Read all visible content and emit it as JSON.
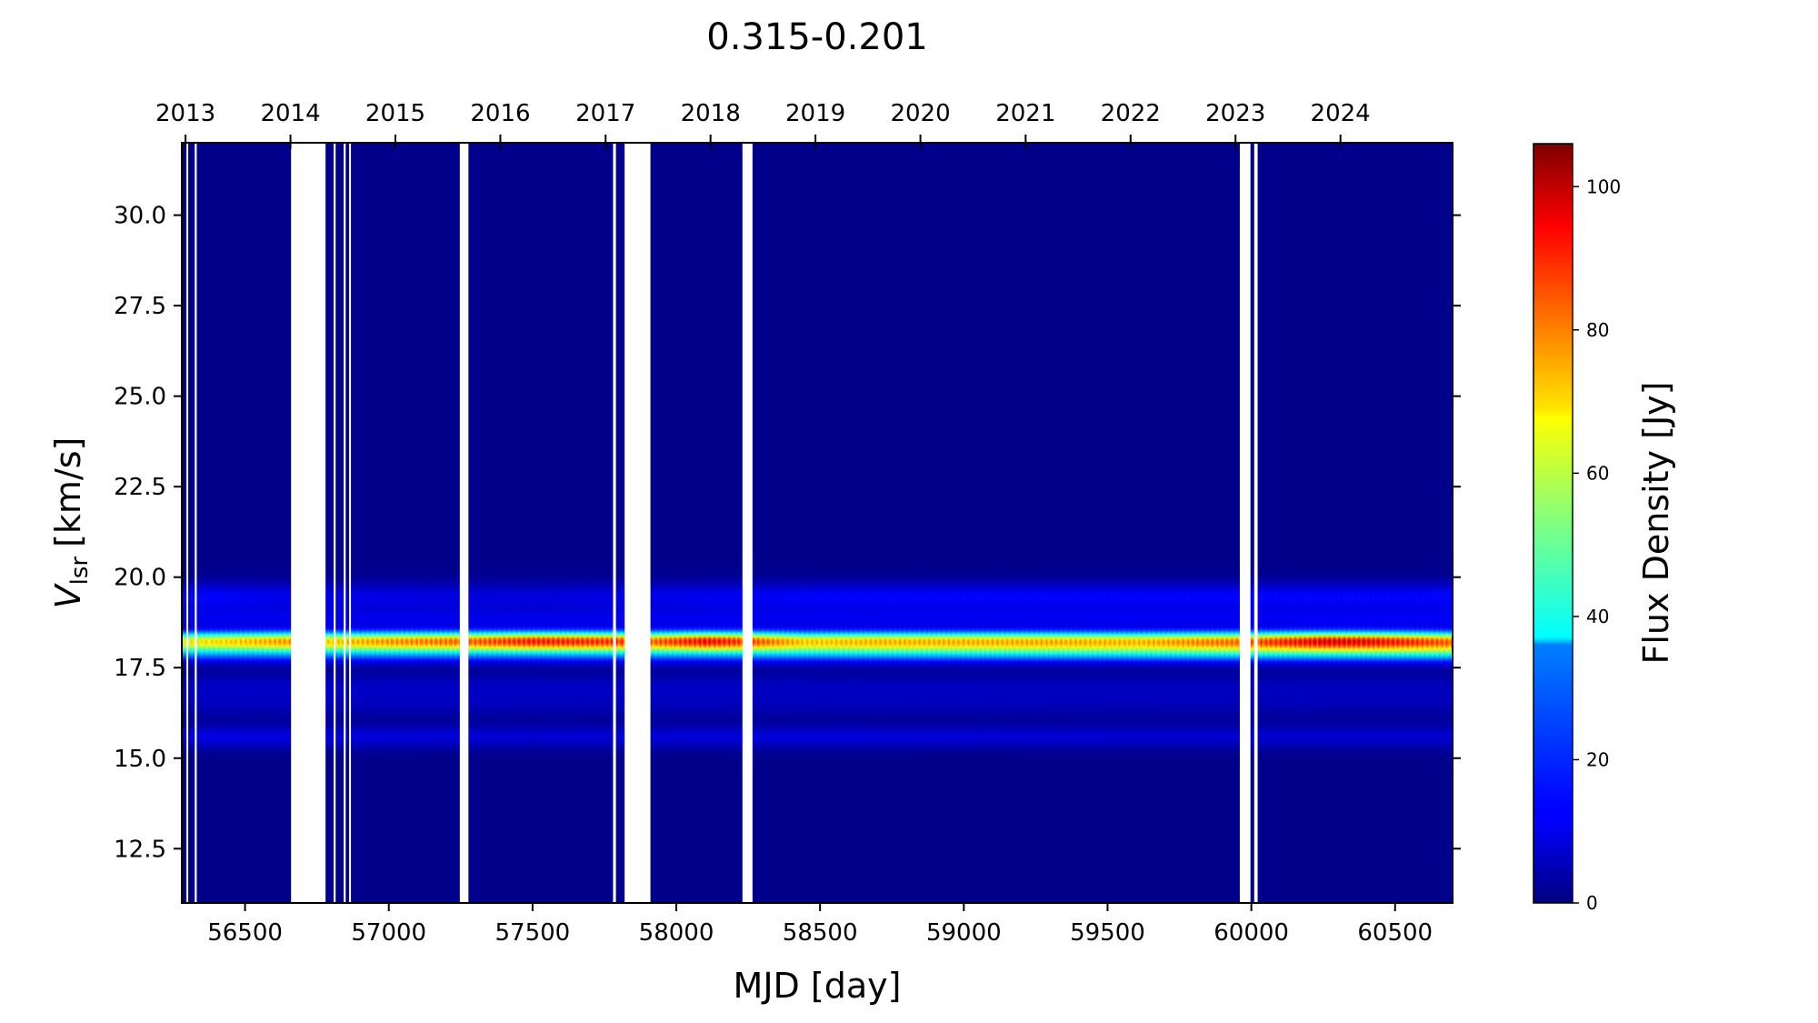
{
  "chart_data": {
    "type": "heatmap",
    "title": "0.315-0.201",
    "xlabel": "MJD [day]",
    "ylabel": "V",
    "ylabel_sub": "lsr",
    "ylabel_unit": "[km/s]",
    "xlim": [
      56280,
      60700
    ],
    "ylim": [
      11.0,
      32.0
    ],
    "x_ticks": [
      56500,
      57000,
      57500,
      58000,
      58500,
      59000,
      59500,
      60000,
      60500
    ],
    "y_ticks": [
      12.5,
      15.0,
      17.5,
      20.0,
      22.5,
      25.0,
      27.5,
      30.0
    ],
    "top_axis": {
      "ticks": [
        {
          "label": "2013",
          "mjd": 56293
        },
        {
          "label": "2014",
          "mjd": 56658
        },
        {
          "label": "2015",
          "mjd": 57023
        },
        {
          "label": "2016",
          "mjd": 57388
        },
        {
          "label": "2017",
          "mjd": 57754
        },
        {
          "label": "2018",
          "mjd": 58119
        },
        {
          "label": "2019",
          "mjd": 58484
        },
        {
          "label": "2020",
          "mjd": 58849
        },
        {
          "label": "2021",
          "mjd": 59215
        },
        {
          "label": "2022",
          "mjd": 59580
        },
        {
          "label": "2023",
          "mjd": 59945
        },
        {
          "label": "2024",
          "mjd": 60310
        }
      ]
    },
    "colorbar": {
      "label": "Flux Density [Jy]",
      "range": [
        0,
        106
      ],
      "ticks": [
        0,
        20,
        40,
        60,
        80,
        100
      ],
      "colormap": "jet"
    },
    "data_gaps_mjd": [
      [
        56296,
        56302
      ],
      [
        56325,
        56332
      ],
      [
        56660,
        56780
      ],
      [
        56808,
        56815
      ],
      [
        56843,
        56850
      ],
      [
        56862,
        56868
      ],
      [
        57247,
        57277
      ],
      [
        57780,
        57790
      ],
      [
        57820,
        57910
      ],
      [
        58230,
        58265
      ],
      [
        59960,
        59997
      ],
      [
        60010,
        60022
      ]
    ],
    "spectral_features": [
      {
        "v_center": 18.25,
        "v_width": 0.17,
        "peak_flux_by_mjd": [
          [
            56280,
            60
          ],
          [
            56650,
            72
          ],
          [
            56780,
            65
          ],
          [
            57000,
            72
          ],
          [
            57300,
            78
          ],
          [
            57500,
            86
          ],
          [
            57800,
            82
          ],
          [
            57910,
            76
          ],
          [
            58100,
            88
          ],
          [
            58250,
            80
          ],
          [
            58450,
            64
          ],
          [
            58700,
            66
          ],
          [
            59000,
            66
          ],
          [
            59300,
            66
          ],
          [
            59600,
            64
          ],
          [
            59850,
            70
          ],
          [
            59960,
            72
          ],
          [
            60250,
            88
          ],
          [
            60400,
            86
          ],
          [
            60700,
            72
          ]
        ]
      },
      {
        "v_center": 17.95,
        "v_width": 0.2,
        "peak_flux_by_mjd": [
          [
            56280,
            28
          ],
          [
            57500,
            30
          ],
          [
            58500,
            34
          ],
          [
            59500,
            38
          ],
          [
            60000,
            40
          ],
          [
            60700,
            42
          ]
        ]
      },
      {
        "v_center": 19.45,
        "v_width": 0.28,
        "peak_flux_by_mjd": [
          [
            56280,
            14
          ],
          [
            56600,
            11
          ],
          [
            57500,
            9
          ],
          [
            58500,
            13
          ],
          [
            59500,
            13
          ],
          [
            60700,
            13
          ]
        ]
      },
      {
        "v_center": 15.6,
        "v_width": 0.22,
        "peak_flux_by_mjd": [
          [
            56280,
            10
          ],
          [
            57500,
            8
          ],
          [
            58500,
            9
          ],
          [
            59500,
            8
          ],
          [
            60700,
            8
          ]
        ]
      },
      {
        "v_center": 17.0,
        "v_width": 0.25,
        "peak_flux_by_mjd": [
          [
            56280,
            6
          ],
          [
            60700,
            5
          ]
        ]
      },
      {
        "v_center": 16.5,
        "v_width": 0.25,
        "peak_flux_by_mjd": [
          [
            56280,
            5
          ],
          [
            60700,
            4
          ]
        ]
      },
      {
        "v_center": 18.85,
        "v_width": 0.2,
        "peak_flux_by_mjd": [
          [
            56280,
            10
          ],
          [
            58000,
            10
          ],
          [
            60700,
            11
          ]
        ]
      }
    ]
  }
}
